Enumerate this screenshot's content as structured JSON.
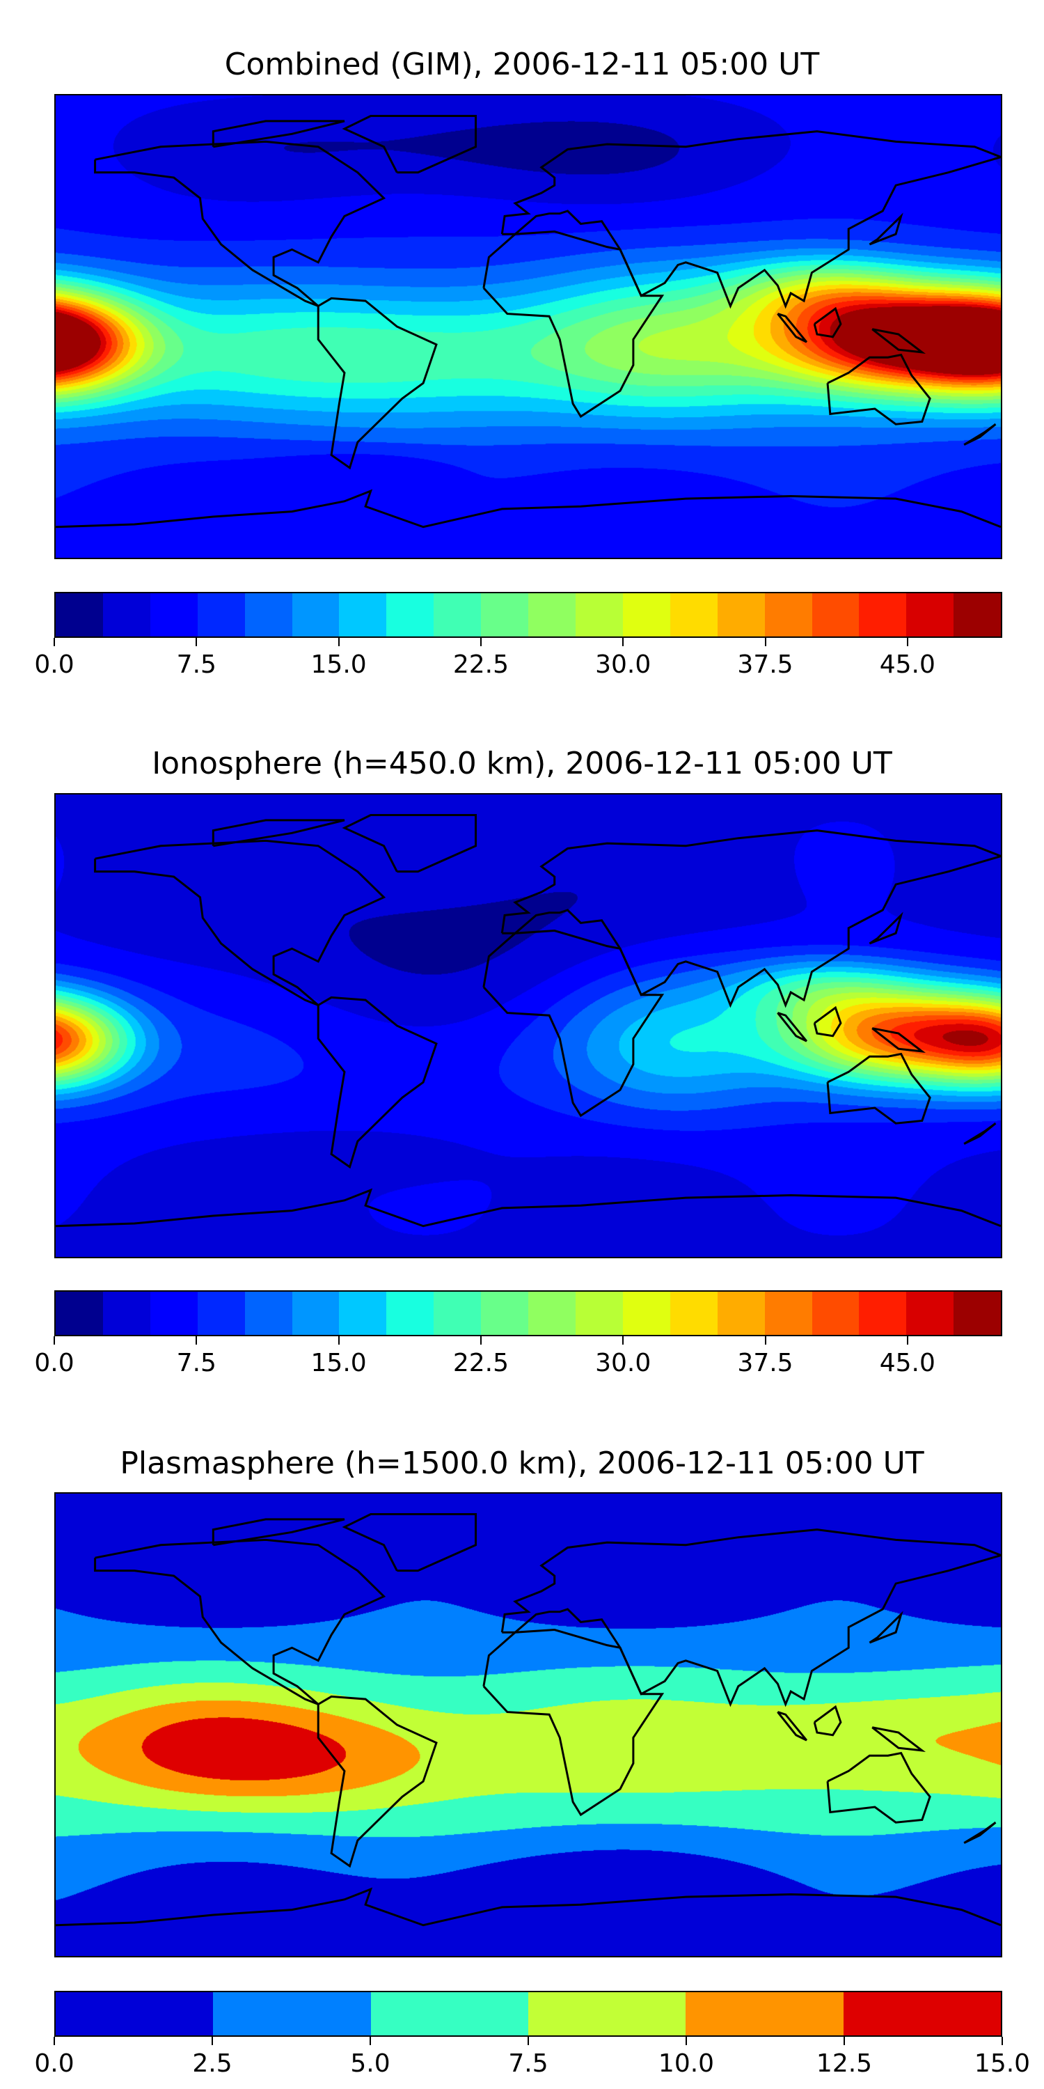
{
  "chart_data": [
    {
      "type": "heatmap",
      "title": "Combined (GIM), 2006-12-11 05:00 UT",
      "extent": {
        "lon": [
          -180,
          180
        ],
        "lat": [
          -90,
          90
        ]
      },
      "levels": [
        0,
        2.5,
        5,
        7.5,
        10,
        12.5,
        15,
        17.5,
        20,
        22.5,
        25,
        27.5,
        30,
        32.5,
        35,
        37.5,
        40,
        42.5,
        45,
        47.5,
        50
      ],
      "colors": [
        "#00008f",
        "#0000d8",
        "#0000ff",
        "#0028ff",
        "#0064ff",
        "#0096ff",
        "#00c8ff",
        "#18ffe0",
        "#40ffb4",
        "#68ff8a",
        "#90ff60",
        "#b8ff36",
        "#e0ff10",
        "#ffdc00",
        "#ffac00",
        "#ff7c00",
        "#ff4c00",
        "#ff1e00",
        "#d80000",
        "#9c0000"
      ],
      "colorbar_ticks": [
        "0.0",
        "7.5",
        "15.0",
        "22.5",
        "30.0",
        "37.5",
        "45.0"
      ],
      "colorbar_tick_values": [
        0,
        7.5,
        15,
        22.5,
        30,
        37.5,
        45
      ],
      "field": {
        "base": 6.5,
        "features": [
          {
            "lon": 140,
            "lat": -4,
            "amp": 39,
            "slon": 32,
            "slat": 14
          },
          {
            "lon": 110,
            "lat": 14,
            "amp": 12,
            "slon": 25,
            "slat": 10
          },
          {
            "lon": -180,
            "lat": -6,
            "amp": 32,
            "slon": 22,
            "slat": 13
          },
          {
            "lon": 55,
            "lat": -5,
            "amp": 11,
            "slon": 35,
            "slat": 20
          },
          {
            "lon": -60,
            "lat": -10,
            "amp": 8,
            "slon": 60,
            "slat": 18
          },
          {
            "lon": -20,
            "lat": 70,
            "amp": -5,
            "slon": 90,
            "slat": 15
          },
          {
            "lon": -60,
            "lat": -55,
            "amp": -3,
            "slon": 25,
            "slat": 6
          }
        ],
        "band": {
          "lat": -12,
          "amp": 8,
          "slat": 22
        }
      }
    },
    {
      "type": "heatmap",
      "title": "Ionosphere  (h=450.0 km), 2006-12-11 05:00 UT",
      "extent": {
        "lon": [
          -180,
          180
        ],
        "lat": [
          -90,
          90
        ]
      },
      "levels": [
        0,
        2.5,
        5,
        7.5,
        10,
        12.5,
        15,
        17.5,
        20,
        22.5,
        25,
        27.5,
        30,
        32.5,
        35,
        37.5,
        40,
        42.5,
        45,
        47.5,
        50
      ],
      "colors": [
        "#00008f",
        "#0000d8",
        "#0000ff",
        "#0028ff",
        "#0064ff",
        "#0096ff",
        "#00c8ff",
        "#18ffe0",
        "#40ffb4",
        "#68ff8a",
        "#90ff60",
        "#b8ff36",
        "#e0ff10",
        "#ffdc00",
        "#ffac00",
        "#ff7c00",
        "#ff4c00",
        "#ff1e00",
        "#d80000",
        "#9c0000"
      ],
      "colorbar_ticks": [
        "0.0",
        "7.5",
        "15.0",
        "22.5",
        "30.0",
        "37.5",
        "45.0"
      ],
      "colorbar_tick_values": [
        0,
        7.5,
        15,
        22.5,
        30,
        37.5,
        45
      ],
      "field": {
        "base": 4.5,
        "features": [
          {
            "lon": 140,
            "lat": -3,
            "amp": 32,
            "slon": 30,
            "slat": 13
          },
          {
            "lon": 110,
            "lat": 15,
            "amp": 10,
            "slon": 25,
            "slat": 9
          },
          {
            "lon": -180,
            "lat": -6,
            "amp": 24,
            "slon": 20,
            "slat": 12
          },
          {
            "lon": 55,
            "lat": -5,
            "amp": 9,
            "slon": 30,
            "slat": 20
          },
          {
            "lon": -30,
            "lat": 30,
            "amp": -3,
            "slon": 60,
            "slat": 30
          },
          {
            "lon": -60,
            "lat": -50,
            "amp": -2,
            "slon": 30,
            "slat": 8
          }
        ],
        "band": {
          "lat": -12,
          "amp": 3.5,
          "slat": 22
        }
      }
    },
    {
      "type": "heatmap",
      "title": "Plasmasphere (h=1500.0 km), 2006-12-11 05:00 UT",
      "extent": {
        "lon": [
          -180,
          180
        ],
        "lat": [
          -90,
          90
        ]
      },
      "levels": [
        0,
        2.5,
        5,
        7.5,
        10,
        12.5,
        15
      ],
      "colors": [
        "#0000d8",
        "#0080ff",
        "#36ffc2",
        "#c2ff36",
        "#ff9400",
        "#de0000"
      ],
      "colorbar_ticks": [
        "0.0",
        "2.5",
        "5.0",
        "7.5",
        "10.0",
        "12.5",
        "15.0"
      ],
      "colorbar_tick_values": [
        0,
        2.5,
        5,
        7.5,
        10,
        12.5,
        15
      ],
      "field": {
        "base": 1.2,
        "features": [
          {
            "lon": -90,
            "lat": -12,
            "amp": 4.5,
            "slon": 40,
            "slat": 14
          },
          {
            "lon": -130,
            "lat": -5,
            "amp": 2.5,
            "slon": 30,
            "slat": 15
          },
          {
            "lon": 130,
            "lat": -2,
            "amp": 2.0,
            "slon": 35,
            "slat": 12
          },
          {
            "lon": 20,
            "lat": -60,
            "amp": -1.5,
            "slon": 60,
            "slat": 10
          }
        ],
        "band": {
          "lat": -10,
          "amp": 7.3,
          "slat": 27
        }
      }
    }
  ]
}
